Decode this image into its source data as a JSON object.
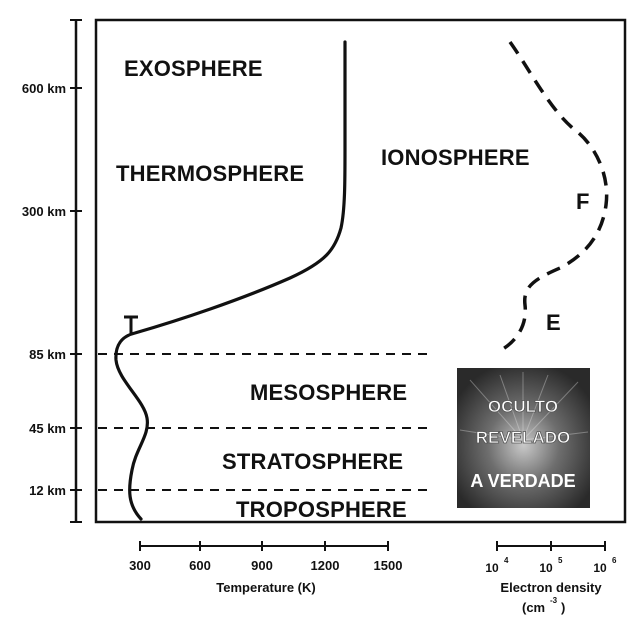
{
  "layers": {
    "exosphere": "EXOSPHERE",
    "thermosphere": "THERMOSPHERE",
    "ionosphere": "IONOSPHERE",
    "mesosphere": "MESOSPHERE",
    "stratosphere": "STRATOSPHERE",
    "troposphere": "TROPOSPHERE"
  },
  "regions": {
    "f": "F",
    "e": "E"
  },
  "altitude_ticks": [
    "600 km",
    "300 km",
    "85 km",
    "45 km",
    "12 km"
  ],
  "temperature_axis": {
    "title": "Temperature (K)",
    "ticks": [
      "300",
      "600",
      "900",
      "1200",
      "1500"
    ]
  },
  "electron_axis": {
    "title": "Electron density",
    "unit_base": "(cm",
    "unit_exp": "-3",
    "unit_close": ")",
    "ticks": [
      {
        "base": "10",
        "exp": "4"
      },
      {
        "base": "10",
        "exp": "5"
      },
      {
        "base": "10",
        "exp": "6"
      }
    ]
  },
  "watermark": {
    "line1": "OCULTO",
    "line2": "REVELADO",
    "line3": "A VERDADE"
  }
}
